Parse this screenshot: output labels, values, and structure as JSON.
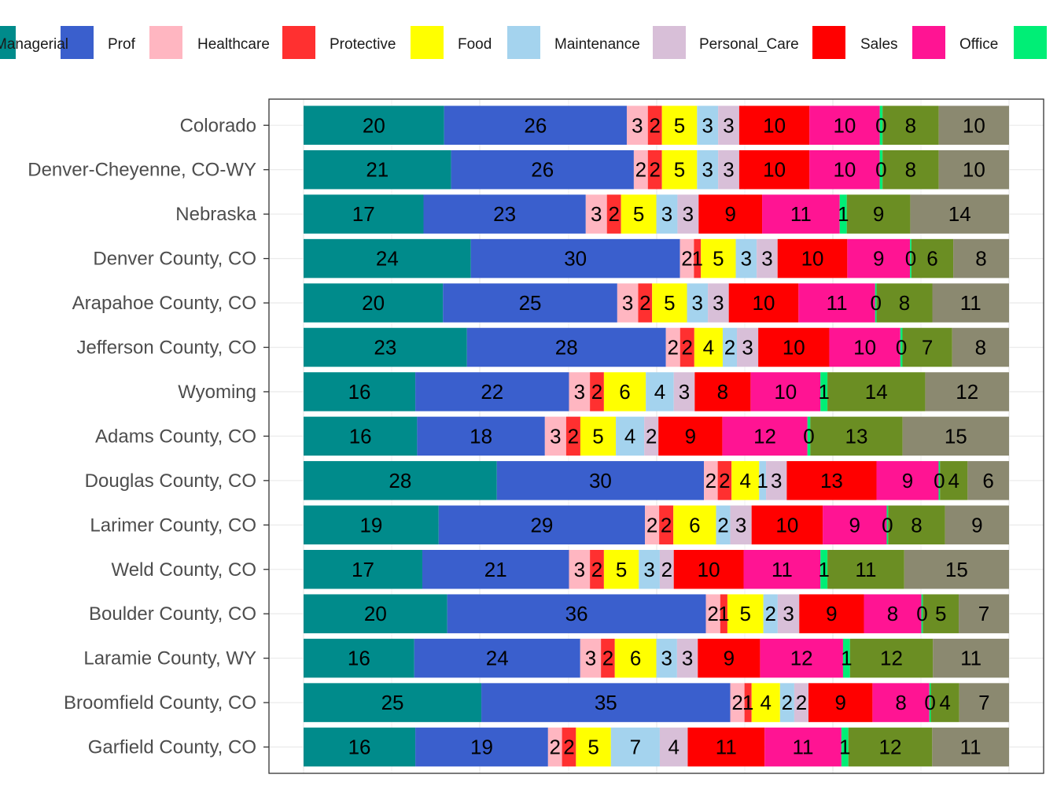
{
  "chart_data": {
    "type": "bar",
    "orientation": "horizontal",
    "stacked": true,
    "legend_position": "top",
    "grid": true,
    "xlim": [
      0,
      100
    ],
    "series": [
      {
        "name": "Managerial",
        "color": "#008B8B"
      },
      {
        "name": "Prof",
        "color": "#3A5FCD"
      },
      {
        "name": "Healthcare",
        "color": "#FFB6C1"
      },
      {
        "name": "Protective",
        "color": "#FF3030"
      },
      {
        "name": "Food",
        "color": "#FFFF00"
      },
      {
        "name": "Maintenance",
        "color": "#A4D3EE"
      },
      {
        "name": "Personal_Care",
        "color": "#D8BFD8"
      },
      {
        "name": "Sales",
        "color": "#FF0000"
      },
      {
        "name": "Office",
        "color": "#FF1493"
      },
      {
        "name": "",
        "color": "#00EE76"
      },
      {
        "name": "",
        "color": "#6B8E23"
      },
      {
        "name": "",
        "color": "#8B8970"
      }
    ],
    "categories": [
      "Colorado",
      "Denver-Cheyenne, CO-WY",
      "Nebraska",
      "Denver County, CO",
      "Arapahoe County, CO",
      "Jefferson County, CO",
      "Wyoming",
      "Adams County, CO",
      "Douglas County, CO",
      "Larimer County, CO",
      "Weld County, CO",
      "Boulder County, CO",
      "Laramie County, WY",
      "Broomfield County, CO",
      "Garfield County, CO"
    ],
    "values": [
      [
        20,
        26,
        3,
        2,
        5,
        3,
        3,
        10,
        10,
        0.4,
        8,
        10
      ],
      [
        21,
        26,
        2,
        2,
        5,
        3,
        3,
        10,
        10,
        0.4,
        8,
        10
      ],
      [
        17,
        23,
        3,
        2,
        5,
        3,
        3,
        9,
        11,
        1,
        9,
        14
      ],
      [
        24,
        30,
        2,
        1,
        5,
        3,
        3,
        10,
        9,
        0.2,
        6,
        8
      ],
      [
        20,
        25,
        3,
        2,
        5,
        3,
        3,
        10,
        11,
        0.2,
        8,
        11
      ],
      [
        23,
        28,
        2,
        2,
        4,
        2,
        3,
        10,
        10,
        0.3,
        7,
        8
      ],
      [
        16,
        22,
        3,
        2,
        6,
        4,
        3,
        8,
        10,
        1,
        14,
        12
      ],
      [
        16,
        18,
        3,
        2,
        5,
        4,
        2,
        9,
        12,
        0.4,
        13,
        15
      ],
      [
        28,
        30,
        2,
        2,
        4,
        1,
        3,
        13,
        9,
        0.2,
        4,
        6
      ],
      [
        19,
        29,
        2,
        2,
        6,
        2,
        3,
        10,
        9,
        0.2,
        8,
        9
      ],
      [
        17,
        21,
        3,
        2,
        5,
        3,
        2,
        10,
        11,
        1,
        11,
        15
      ],
      [
        20,
        36,
        2,
        1,
        5,
        2,
        3,
        9,
        8,
        0.2,
        5,
        7
      ],
      [
        16,
        24,
        3,
        2,
        6,
        3,
        3,
        9,
        12,
        1,
        12,
        11
      ],
      [
        25,
        35,
        2,
        1,
        4,
        2,
        2,
        9,
        8,
        0.2,
        4,
        7
      ],
      [
        16,
        19,
        2,
        2,
        5,
        7,
        4,
        11,
        11,
        1,
        12,
        11
      ]
    ],
    "data_labels": [
      [
        "20",
        "26",
        "3",
        "2",
        "5",
        "3",
        "3",
        "10",
        "10",
        "0",
        "8",
        "10"
      ],
      [
        "21",
        "26",
        "2",
        "2",
        "5",
        "3",
        "3",
        "10",
        "10",
        "0",
        "8",
        "10"
      ],
      [
        "17",
        "23",
        "3",
        "2",
        "5",
        "3",
        "3",
        "9",
        "11",
        "1",
        "9",
        "14"
      ],
      [
        "24",
        "30",
        "2",
        "1",
        "5",
        "3",
        "3",
        "10",
        "9",
        "0",
        "6",
        "8"
      ],
      [
        "20",
        "25",
        "3",
        "2",
        "5",
        "3",
        "3",
        "10",
        "11",
        "0",
        "8",
        "11"
      ],
      [
        "23",
        "28",
        "2",
        "2",
        "4",
        "2",
        "3",
        "10",
        "10",
        "0",
        "7",
        "8"
      ],
      [
        "16",
        "22",
        "3",
        "2",
        "6",
        "4",
        "3",
        "8",
        "10",
        "1",
        "14",
        "12"
      ],
      [
        "16",
        "18",
        "3",
        "2",
        "5",
        "4",
        "2",
        "9",
        "12",
        "0",
        "13",
        "15"
      ],
      [
        "28",
        "30",
        "2",
        "2",
        "4",
        "1",
        "3",
        "13",
        "9",
        "0",
        "4",
        "6"
      ],
      [
        "19",
        "29",
        "2",
        "2",
        "6",
        "2",
        "3",
        "10",
        "9",
        "0",
        "8",
        "9"
      ],
      [
        "17",
        "21",
        "3",
        "2",
        "5",
        "3",
        "2",
        "10",
        "11",
        "1",
        "11",
        "15"
      ],
      [
        "20",
        "36",
        "2",
        "1",
        "5",
        "2",
        "3",
        "9",
        "8",
        "0",
        "5",
        "7"
      ],
      [
        "16",
        "24",
        "3",
        "2",
        "6",
        "3",
        "3",
        "9",
        "12",
        "1",
        "12",
        "11"
      ],
      [
        "25",
        "35",
        "2",
        "1",
        "4",
        "2",
        "2",
        "9",
        "8",
        "0",
        "4",
        "7"
      ],
      [
        "16",
        "19",
        "2",
        "2",
        "5",
        "7",
        "4",
        "11",
        "11",
        "1",
        "12",
        "11"
      ]
    ]
  }
}
